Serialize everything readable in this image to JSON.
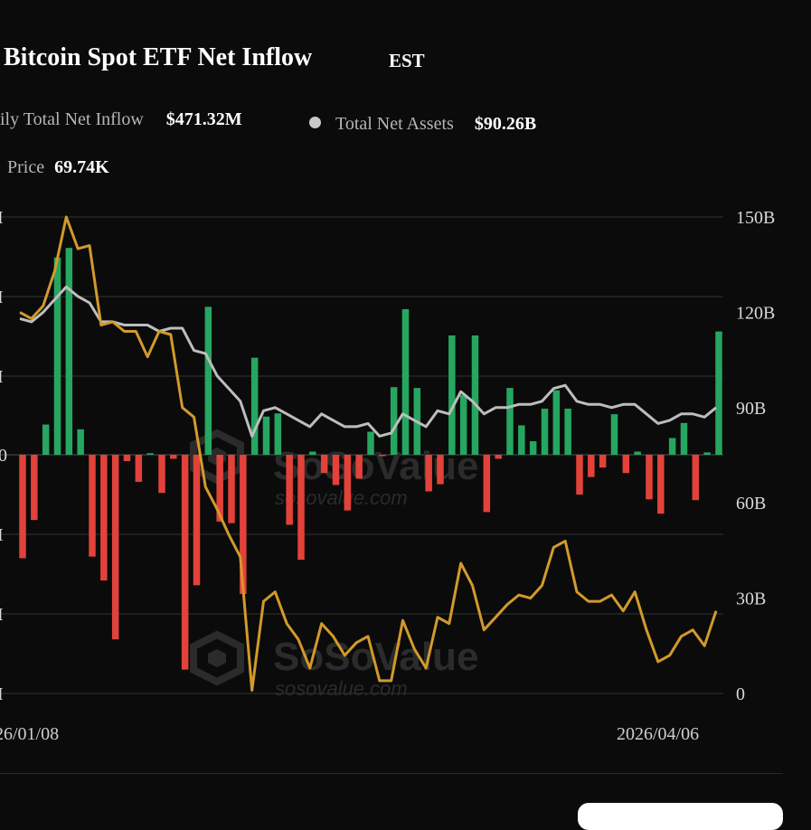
{
  "header": {
    "title": "Bitcoin Spot ETF Net Inflow",
    "timezone": "EST"
  },
  "legend": {
    "daily_inflow_label": "ily Total Net Inflow",
    "daily_inflow_value": "$471.32M",
    "net_assets_label": "Total Net Assets",
    "net_assets_value": "$90.26B",
    "price_label": "Price",
    "price_value": "69.74K"
  },
  "watermark": {
    "brand": "SoSoValue",
    "url": "sosovalue.com"
  },
  "colors": {
    "inflow": "#26a660",
    "outflow": "#e2423a",
    "assets_line": "#bdbdbd",
    "price_line": "#d29a2b",
    "grid": "#262626",
    "background": "#0b0b0b"
  },
  "chart_data": {
    "type": "bar",
    "x_start_label": "26/01/08",
    "x_end_label": "2026/04/06",
    "left_axis_ticks": [
      "I",
      "I",
      "I",
      "0",
      "I",
      "I",
      "I"
    ],
    "right_axis_ticks": [
      "150B",
      "120B",
      "90B",
      "60B",
      "30B",
      "0"
    ],
    "right_axis_range": [
      0,
      150
    ],
    "grid": true,
    "series": [
      {
        "name": "Total Net Inflow",
        "values": [
          -1300,
          -820,
          380,
          2480,
          2600,
          320,
          -1280,
          -1580,
          -2320,
          -80,
          -340,
          20,
          -480,
          -50,
          -2700,
          -1640,
          1860,
          -840,
          -860,
          -1750,
          1220,
          480,
          520,
          -880,
          -1320,
          40,
          -230,
          -380,
          -700,
          -300,
          290,
          -10,
          850,
          1830,
          840,
          -460,
          -370,
          1500,
          750,
          1500,
          -720,
          -50,
          840,
          370,
          170,
          580,
          810,
          580,
          -500,
          -280,
          -160,
          510,
          -230,
          40,
          -560,
          -740,
          210,
          400,
          -570,
          30,
          1550
        ]
      },
      {
        "name": "Total Net Assets",
        "values": [
          118,
          117,
          120,
          124,
          128,
          125,
          123,
          117,
          117,
          116,
          116,
          116,
          114,
          115,
          115,
          108,
          107,
          100,
          96,
          92,
          81,
          89,
          90,
          88,
          86,
          84,
          88,
          86,
          84,
          84,
          85,
          81,
          82,
          88,
          86,
          84,
          89,
          88,
          95,
          92,
          88,
          90,
          90,
          91,
          91,
          92,
          96,
          97,
          92,
          91,
          91,
          90,
          91,
          91,
          88,
          85,
          86,
          88,
          88,
          87,
          90
        ]
      },
      {
        "name": "Price",
        "values": [
          120,
          118,
          122,
          133,
          150,
          140,
          141,
          116,
          117,
          114,
          114,
          106,
          114,
          113,
          90,
          87,
          65,
          58,
          50,
          43,
          1,
          29,
          32,
          22,
          17,
          8,
          22,
          18,
          12,
          16,
          18,
          4,
          4,
          23,
          14,
          8,
          24,
          22,
          41,
          34,
          20,
          24,
          28,
          31,
          30,
          34,
          46,
          48,
          32,
          29,
          29,
          31,
          26,
          32,
          20,
          10,
          12,
          18,
          20,
          15,
          26
        ]
      }
    ]
  }
}
